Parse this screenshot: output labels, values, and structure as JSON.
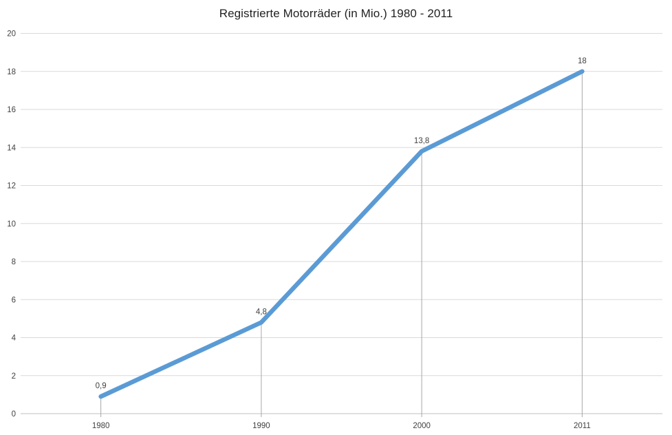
{
  "chart_data": {
    "type": "line",
    "title": "Registrierte Motorräder (in Mio.) 1980 - 2011",
    "categories": [
      "1980",
      "1990",
      "2000",
      "2011"
    ],
    "series": [
      {
        "name": "Registrierte Motorräder (in Mio.)",
        "values": [
          0.9,
          4.8,
          13.8,
          18
        ],
        "value_labels": [
          "0,9",
          "4,8",
          "13,8",
          "18"
        ]
      }
    ],
    "xlabel": "",
    "ylabel": "",
    "ylim": [
      0,
      20
    ],
    "y_ticks": [
      0,
      2,
      4,
      6,
      8,
      10,
      12,
      14,
      16,
      18,
      20
    ],
    "grid": true,
    "drop_lines": true,
    "legend_position": "none",
    "colors": {
      "line": "#5B9BD5",
      "gridline": "#D9D9D9",
      "axis_line": "#BFBFBF",
      "drop_line": "#A6A6A6",
      "tick_label": "#404040",
      "data_label": "#404040",
      "title": "#1F1F1F",
      "background": "#FFFFFF"
    }
  }
}
